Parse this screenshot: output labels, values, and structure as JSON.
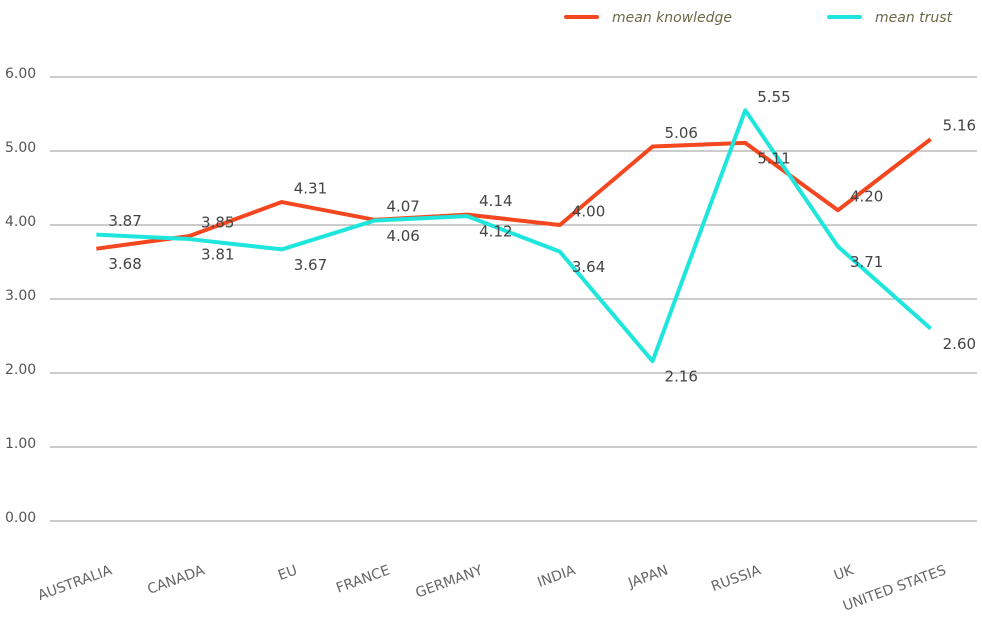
{
  "chart_data": {
    "type": "line",
    "categories": [
      "AUSTRALIA",
      "CANADA",
      "EU",
      "FRANCE",
      "GERMANY",
      "INDIA",
      "JAPAN",
      "RUSSIA",
      "UK",
      "UNITED STATES"
    ],
    "series": [
      {
        "name": "mean knowledge",
        "color": "#f4471f",
        "values": [
          3.68,
          3.85,
          4.31,
          4.07,
          4.14,
          4.0,
          5.06,
          5.11,
          4.2,
          5.16
        ],
        "value_labels": [
          "3.68",
          "3.85",
          "4.31",
          "4.07",
          "4.14",
          "4.00",
          "5.06",
          "5.11",
          "4.20",
          "5.16"
        ]
      },
      {
        "name": "mean trust",
        "color": "#1ee6dc",
        "values": [
          3.87,
          3.81,
          3.67,
          4.06,
          4.12,
          3.64,
          2.16,
          5.55,
          3.71,
          2.6
        ],
        "value_labels": [
          "3.87",
          "3.81",
          "3.67",
          "4.06",
          "4.12",
          "3.64",
          "2.16",
          "5.55",
          "3.71",
          "2.60"
        ]
      }
    ],
    "ylim": [
      0,
      6
    ],
    "yticks": [
      {
        "value": 0,
        "label": "0.00"
      },
      {
        "value": 1,
        "label": "1.00"
      },
      {
        "value": 2,
        "label": "2.00"
      },
      {
        "value": 3,
        "label": "3.00"
      },
      {
        "value": 4,
        "label": "4.00"
      },
      {
        "value": 5,
        "label": "5.00"
      },
      {
        "value": 6,
        "label": "6.00"
      }
    ],
    "grid": true,
    "legend": "top-right"
  }
}
